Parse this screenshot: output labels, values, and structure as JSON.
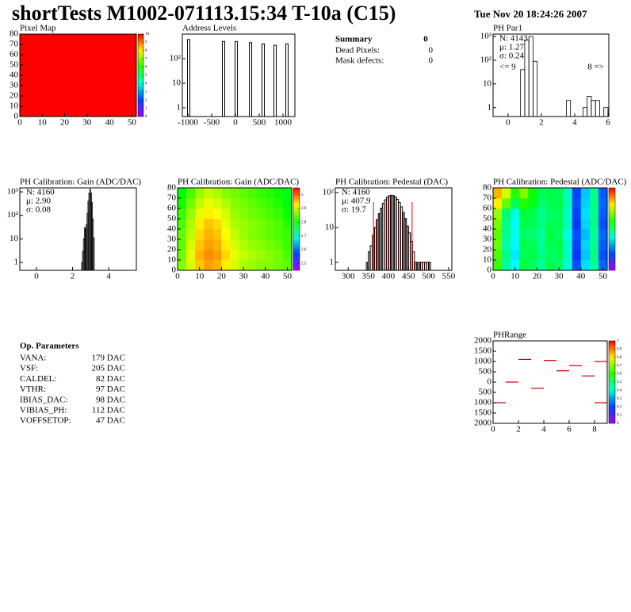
{
  "header": {
    "title": "shortTests M1002-071113.15:34 T-10a (C15)",
    "date": "Tue Nov 20 18:24:26 2007"
  },
  "summary": {
    "title": "Summary",
    "total": 0,
    "rows": [
      {
        "label": "Dead Pixels:",
        "value": 0
      },
      {
        "label": "Mask defects:",
        "value": 0
      }
    ]
  },
  "op_parameters": {
    "title": "Op. Parameters",
    "rows": [
      {
        "name": "VANA:",
        "value": "179 DAC"
      },
      {
        "name": "VSF:",
        "value": "205 DAC"
      },
      {
        "name": "CALDEL:",
        "value": "82 DAC"
      },
      {
        "name": "VTHR:",
        "value": "97 DAC"
      },
      {
        "name": "IBIAS_DAC:",
        "value": "98 DAC"
      },
      {
        "name": "VIBIAS_PH:",
        "value": "112 DAC"
      },
      {
        "name": "VOFFSETOP:",
        "value": "47 DAC"
      }
    ]
  },
  "chart_data": [
    {
      "type": "heatmap",
      "title": "Pixel Map",
      "xlim": [
        0,
        52
      ],
      "ylim": [
        0,
        80
      ],
      "xticks": [
        0,
        10,
        20,
        30,
        40,
        50
      ],
      "yticks": [
        0,
        10,
        20,
        30,
        40,
        50,
        60,
        70,
        80
      ],
      "zlim": [
        0,
        10
      ],
      "zticks": [
        0,
        1,
        2,
        3,
        4,
        5,
        6,
        7,
        8,
        9,
        10
      ],
      "z": [
        [
          10,
          10,
          10,
          10
        ],
        [
          10,
          10,
          10,
          10
        ],
        [
          10,
          10,
          10,
          10
        ],
        [
          10,
          10,
          10,
          10
        ]
      ]
    },
    {
      "type": "bar",
      "title": "Address Levels",
      "log_y": true,
      "color": "#000000",
      "xlim": [
        -1117,
        1250
      ],
      "ylim": [
        0.44,
        1000
      ],
      "xticks": [
        -1000,
        -500,
        0,
        500,
        1000
      ],
      "yticks": [
        1,
        10,
        {
          "value": 100,
          "label": "10²"
        }
      ],
      "x": [
        -983,
        -250,
        17,
        317,
        583,
        833,
        1083
      ],
      "values": [
        600,
        500,
        500,
        450,
        400,
        350,
        400
      ]
    },
    {
      "type": "histogram",
      "title": "PH Par1",
      "log_y": true,
      "style": "outline",
      "color": "#000000",
      "xlim": [
        -0.9,
        6.05
      ],
      "ylim": [
        0.42,
        1260
      ],
      "xticks": [
        0,
        2,
        4,
        6
      ],
      "yticks": [
        1,
        10,
        {
          "value": 100,
          "label": "10²"
        },
        {
          "value": 1000,
          "label": "10³"
        }
      ],
      "bins": [
        0,
        0.25,
        0.5,
        0.75,
        1,
        1.25,
        1.5,
        1.75,
        2,
        2.25,
        2.5,
        2.75,
        3,
        3.25,
        3.5,
        3.75,
        4,
        4.25,
        4.5,
        4.75,
        5,
        5.25,
        5.5,
        5.75,
        6
      ],
      "counts": [
        0,
        0,
        0,
        40,
        700,
        1000,
        90,
        0,
        0,
        0,
        0,
        0,
        0,
        0,
        2,
        0,
        0,
        0,
        1,
        3,
        2,
        2,
        0,
        1
      ],
      "stats": [
        "N: 4143",
        "μ: 1.27",
        "σ: 0.24"
      ],
      "stats_colors": [
        "#000000",
        "#000000",
        "#000000"
      ],
      "annotations": [
        "<= 9",
        "8 =>"
      ]
    },
    {
      "type": "histogram",
      "title": "PH Calibration: Gain (ADC/DAC)",
      "log_y": true,
      "style": "outline",
      "color": "#000000",
      "xlim": [
        -0.92,
        5.53
      ],
      "ylim": [
        0.46,
        1480
      ],
      "xticks": [
        0,
        2,
        4
      ],
      "yticks": [
        1,
        10,
        {
          "value": 100,
          "label": "10²"
        },
        {
          "value": 1000,
          "label": "10³"
        }
      ],
      "bins": [
        2.5,
        2.55,
        2.6,
        2.65,
        2.7,
        2.75,
        2.8,
        2.85,
        2.9,
        2.95,
        3,
        3.05,
        3.1,
        3.15,
        3.2
      ],
      "counts": [
        1,
        3,
        10,
        30,
        25,
        40,
        120,
        400,
        900,
        1300,
        900,
        350,
        70,
        11
      ],
      "stats": [
        "N: 4160",
        "μ: 2.90",
        "σ: 0.08"
      ],
      "stats_colors": [
        "#000000",
        "#000000",
        "#000000"
      ]
    },
    {
      "type": "heatmap",
      "title": "PH Calibration: Gain (ADC/DAC)",
      "xlim": [
        0,
        52
      ],
      "ylim": [
        0,
        80
      ],
      "xticks": [
        0,
        10,
        20,
        30,
        40,
        50
      ],
      "yticks": [
        0,
        10,
        20,
        30,
        40,
        50,
        60,
        70,
        80
      ],
      "zlim": [
        2.45,
        3.05
      ],
      "zticks": [
        2.5,
        2.6,
        2.7,
        2.8,
        2.9,
        3
      ],
      "z": [
        [
          2.86,
          2.9,
          2.95,
          2.97,
          2.96,
          2.93,
          2.9,
          2.88,
          2.87,
          2.86,
          2.86,
          2.85,
          2.84
        ],
        [
          2.85,
          2.91,
          2.96,
          2.98,
          2.97,
          2.94,
          2.91,
          2.89,
          2.88,
          2.87,
          2.86,
          2.85,
          2.83
        ],
        [
          2.84,
          2.9,
          2.95,
          2.97,
          2.96,
          2.93,
          2.9,
          2.88,
          2.87,
          2.86,
          2.85,
          2.84,
          2.82
        ],
        [
          2.84,
          2.89,
          2.94,
          2.96,
          2.95,
          2.92,
          2.89,
          2.87,
          2.86,
          2.85,
          2.84,
          2.83,
          2.82
        ],
        [
          2.83,
          2.88,
          2.93,
          2.95,
          2.94,
          2.91,
          2.88,
          2.87,
          2.86,
          2.85,
          2.84,
          2.83,
          2.81
        ],
        [
          2.82,
          2.87,
          2.91,
          2.93,
          2.92,
          2.9,
          2.87,
          2.86,
          2.85,
          2.84,
          2.83,
          2.82,
          2.8
        ],
        [
          2.8,
          2.85,
          2.89,
          2.91,
          2.9,
          2.88,
          2.86,
          2.85,
          2.84,
          2.83,
          2.82,
          2.81,
          2.79
        ],
        [
          2.79,
          2.83,
          2.87,
          2.89,
          2.88,
          2.86,
          2.85,
          2.84,
          2.83,
          2.82,
          2.81,
          2.8,
          2.78
        ]
      ]
    },
    {
      "type": "histogram",
      "title": "PH Calibration: Pedestal (DAC)",
      "log_y": true,
      "style": "hatched",
      "color": "#cc0000",
      "edgecolor": "#000000",
      "xlim": [
        268,
        558
      ],
      "ylim": [
        0.59,
        137
      ],
      "xticks": [
        300,
        350,
        400,
        450,
        500,
        550
      ],
      "yticks": [
        1,
        10,
        {
          "value": 100,
          "label": "10²"
        }
      ],
      "bins": [
        345,
        350,
        355,
        360,
        365,
        370,
        375,
        380,
        385,
        390,
        395,
        400,
        405,
        410,
        415,
        420,
        425,
        430,
        435,
        440,
        445,
        450,
        455,
        460,
        465,
        470,
        475,
        480,
        485,
        490,
        495,
        500,
        505
      ],
      "counts": [
        1,
        2,
        3,
        6,
        10,
        17,
        25,
        36,
        49,
        62,
        73,
        81,
        84,
        82,
        75,
        64,
        52,
        39,
        27,
        18,
        11,
        7,
        4,
        2,
        1,
        1,
        1,
        1,
        1,
        1,
        1,
        1
      ],
      "cuts": [
        363,
        459
      ],
      "cut_color": "#ff0000",
      "stats": [
        "N: 4160",
        "μ: 407.9",
        "σ: 19.7"
      ],
      "stats_colors": [
        "#000000",
        "#ff0000",
        "#ff0000"
      ]
    },
    {
      "type": "heatmap",
      "title": "PH Calibration: Pedestal (ADC/DAC)",
      "xlim": [
        0,
        52
      ],
      "ylim": [
        0,
        80
      ],
      "xticks": [
        0,
        10,
        20,
        30,
        40,
        50
      ],
      "yticks": [
        0,
        10,
        20,
        30,
        40,
        50,
        60,
        70,
        80
      ],
      "zlim": [
        360,
        460
      ],
      "z": [
        [
          422,
          404,
          396,
          412,
          409,
          404,
          411,
          408,
          399,
          381,
          393,
          404,
          383
        ],
        [
          424,
          406,
          394,
          410,
          411,
          406,
          409,
          410,
          401,
          379,
          391,
          406,
          381
        ],
        [
          426,
          403,
          395,
          411,
          410,
          405,
          410,
          411,
          400,
          380,
          392,
          405,
          382
        ],
        [
          425,
          405,
          397,
          409,
          408,
          404,
          412,
          409,
          398,
          381,
          390,
          404,
          383
        ],
        [
          427,
          406,
          396,
          411,
          410,
          406,
          410,
          410,
          401,
          379,
          392,
          406,
          381
        ],
        [
          430,
          408,
          398,
          412,
          411,
          405,
          409,
          410,
          400,
          380,
          393,
          405,
          382
        ],
        [
          440,
          425,
          410,
          420,
          415,
          408,
          410,
          411,
          402,
          381,
          392,
          406,
          383
        ],
        [
          445,
          435,
          420,
          428,
          418,
          410,
          412,
          410,
          401,
          380,
          391,
          405,
          382
        ]
      ]
    },
    {
      "type": "segments",
      "title": "PHRange",
      "color": "#cc0000",
      "xlim": [
        0,
        9
      ],
      "ylim": [
        -2000,
        2000
      ],
      "xticks": [
        0,
        2,
        4,
        6,
        8
      ],
      "yticks": [
        {
          "value": -2000,
          "label": "2000"
        },
        {
          "value": -1500,
          "label": "1500"
        },
        {
          "value": -1000,
          "label": "1000"
        },
        {
          "value": -500,
          "label": "500"
        },
        0,
        500,
        1000,
        1500,
        2000
      ],
      "zlim": [
        0,
        1
      ],
      "zticks": [
        0,
        0.1,
        0.2,
        0.3,
        0.4,
        0.5,
        0.6,
        0.7,
        0.8,
        0.9,
        1
      ],
      "x0": [
        0,
        1,
        2,
        3,
        4,
        5,
        6,
        7,
        8,
        8
      ],
      "x1": [
        1,
        2,
        3,
        4,
        5,
        6,
        7,
        8,
        9,
        9
      ],
      "values": [
        -1000,
        0,
        1100,
        -300,
        1050,
        550,
        800,
        300,
        1000,
        -1000
      ]
    }
  ]
}
